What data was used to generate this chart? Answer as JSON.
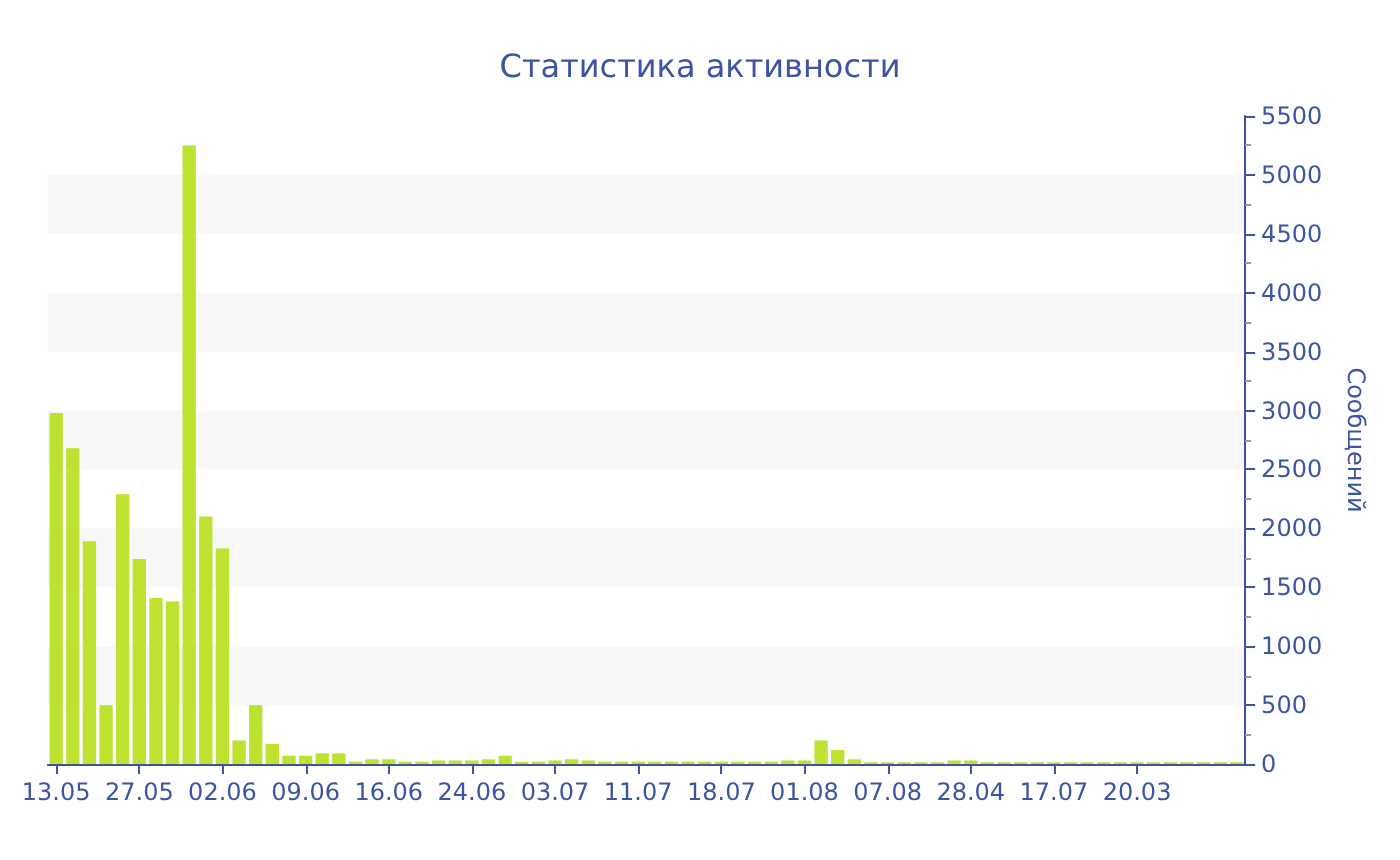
{
  "chart_data": {
    "type": "bar",
    "title": "Статистика активности",
    "ylabel": "Сообщений",
    "categories": [
      "13.05",
      null,
      null,
      null,
      null,
      "27.05",
      null,
      null,
      null,
      null,
      "02.06",
      null,
      null,
      null,
      null,
      "09.06",
      null,
      null,
      null,
      null,
      "16.06",
      null,
      null,
      null,
      null,
      "24.06",
      null,
      null,
      null,
      null,
      "03.07",
      null,
      null,
      null,
      null,
      "11.07",
      null,
      null,
      null,
      null,
      "18.07",
      null,
      null,
      null,
      null,
      "01.08",
      null,
      null,
      null,
      null,
      "07.08",
      null,
      null,
      null,
      null,
      "28.04",
      null,
      null,
      null,
      null,
      "17.07",
      null,
      null,
      null,
      null,
      "20.03",
      null,
      null,
      null,
      null,
      null,
      null
    ],
    "values": [
      2980,
      2680,
      1890,
      500,
      2290,
      1740,
      1410,
      1380,
      5250,
      2100,
      1830,
      200,
      500,
      170,
      70,
      70,
      90,
      90,
      20,
      40,
      40,
      20,
      20,
      30,
      30,
      30,
      40,
      70,
      20,
      20,
      30,
      40,
      30,
      20,
      20,
      20,
      20,
      20,
      20,
      20,
      20,
      20,
      20,
      20,
      30,
      30,
      200,
      120,
      40,
      15,
      15,
      15,
      15,
      15,
      30,
      30,
      15,
      15,
      15,
      15,
      15,
      15,
      15,
      15,
      15,
      15,
      15,
      15,
      15,
      15,
      15,
      15
    ],
    "color": "#bde22f",
    "ylim": [
      0,
      5500
    ],
    "yticks": [
      0,
      500,
      1000,
      1500,
      2000,
      2500,
      3000,
      3500,
      4000,
      4500,
      5000,
      5500
    ],
    "grid": false
  }
}
